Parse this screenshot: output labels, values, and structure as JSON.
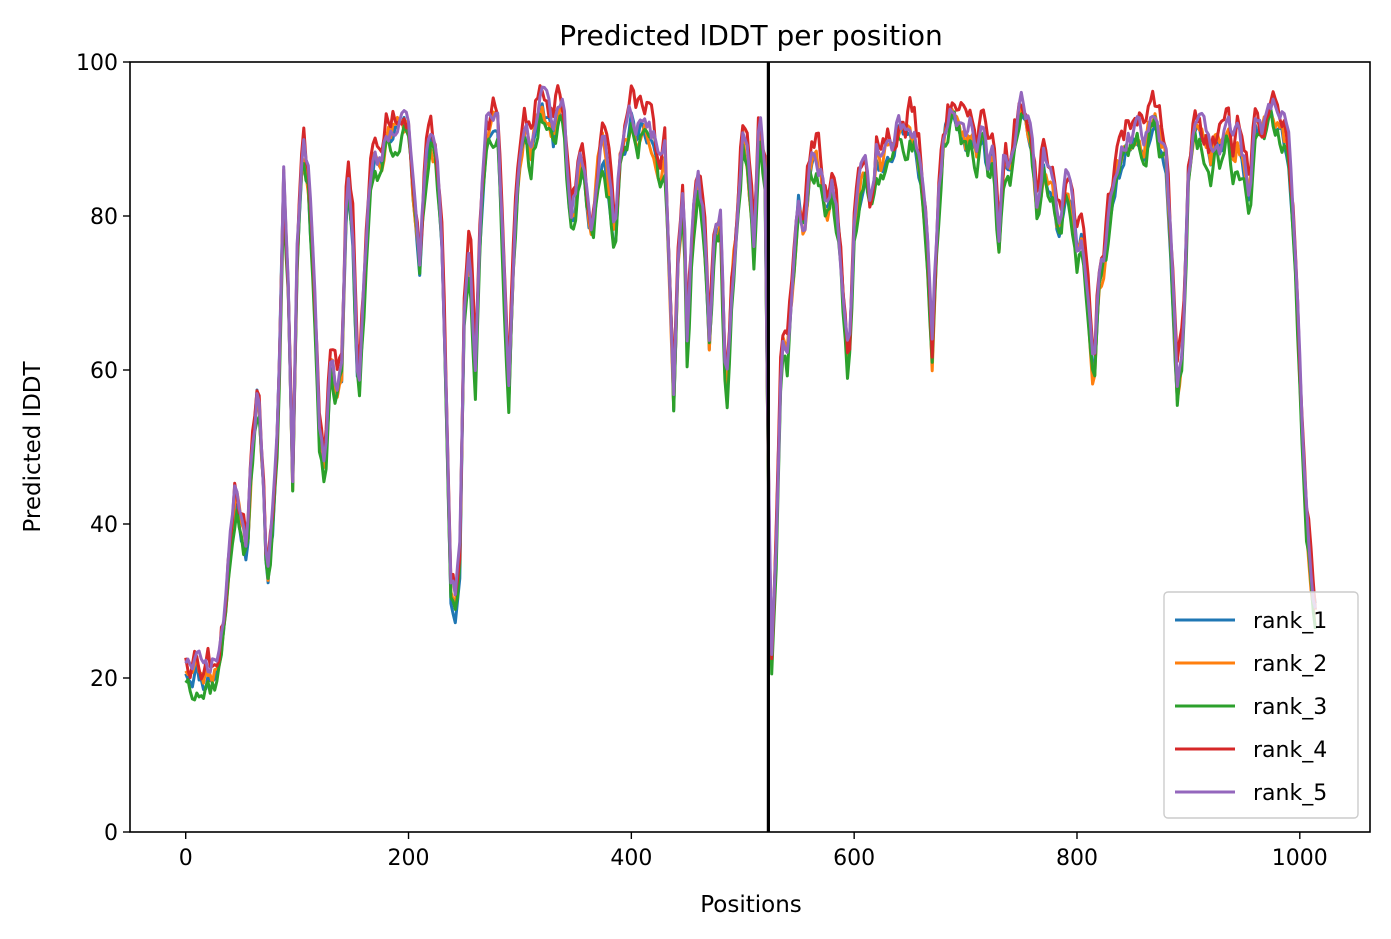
{
  "chart_data": {
    "type": "line",
    "title": "Predicted lDDT per position",
    "xlabel": "Positions",
    "ylabel": "Predicted lDDT",
    "xlim": [
      -50,
      1063
    ],
    "ylim": [
      0,
      100
    ],
    "xticks": [
      0,
      200,
      400,
      600,
      800,
      1000
    ],
    "yticks": [
      0,
      20,
      40,
      60,
      80,
      100
    ],
    "grid": false,
    "legend_position": "lower right",
    "vline_x": 523,
    "colors": {
      "rank_1": "#1f77b4",
      "rank_2": "#ff7f0e",
      "rank_3": "#2ca02c",
      "rank_4": "#d62728",
      "rank_5": "#9467bd",
      "vline": "#000000"
    },
    "base_profile": [
      [
        0,
        22
      ],
      [
        5,
        21
      ],
      [
        10,
        22
      ],
      [
        15,
        20
      ],
      [
        20,
        21
      ],
      [
        25,
        21
      ],
      [
        30,
        23
      ],
      [
        35,
        28
      ],
      [
        40,
        38
      ],
      [
        45,
        44
      ],
      [
        50,
        40
      ],
      [
        55,
        37
      ],
      [
        60,
        50
      ],
      [
        65,
        58
      ],
      [
        70,
        45
      ],
      [
        73,
        33
      ],
      [
        78,
        40
      ],
      [
        83,
        55
      ],
      [
        88,
        85
      ],
      [
        92,
        72
      ],
      [
        96,
        46
      ],
      [
        100,
        75
      ],
      [
        105,
        89
      ],
      [
        110,
        85
      ],
      [
        115,
        72
      ],
      [
        120,
        53
      ],
      [
        125,
        48
      ],
      [
        130,
        62
      ],
      [
        135,
        58
      ],
      [
        140,
        60
      ],
      [
        145,
        86
      ],
      [
        150,
        78
      ],
      [
        155,
        56
      ],
      [
        160,
        70
      ],
      [
        165,
        85
      ],
      [
        170,
        88
      ],
      [
        175,
        86
      ],
      [
        180,
        91
      ],
      [
        190,
        92
      ],
      [
        200,
        92
      ],
      [
        205,
        82
      ],
      [
        210,
        74
      ],
      [
        215,
        86
      ],
      [
        220,
        90
      ],
      [
        225,
        88
      ],
      [
        230,
        76
      ],
      [
        235,
        50
      ],
      [
        238,
        31
      ],
      [
        242,
        30
      ],
      [
        246,
        36
      ],
      [
        250,
        68
      ],
      [
        255,
        76
      ],
      [
        260,
        60
      ],
      [
        265,
        80
      ],
      [
        270,
        90
      ],
      [
        275,
        93
      ],
      [
        280,
        92
      ],
      [
        285,
        75
      ],
      [
        290,
        57
      ],
      [
        295,
        78
      ],
      [
        300,
        88
      ],
      [
        305,
        92
      ],
      [
        310,
        88
      ],
      [
        315,
        93
      ],
      [
        320,
        95
      ],
      [
        325,
        93
      ],
      [
        330,
        90
      ],
      [
        335,
        94
      ],
      [
        340,
        93
      ],
      [
        345,
        80
      ],
      [
        350,
        82
      ],
      [
        355,
        88
      ],
      [
        360,
        83
      ],
      [
        365,
        78
      ],
      [
        370,
        86
      ],
      [
        375,
        90
      ],
      [
        380,
        84
      ],
      [
        385,
        77
      ],
      [
        390,
        88
      ],
      [
        395,
        90
      ],
      [
        400,
        93
      ],
      [
        405,
        90
      ],
      [
        410,
        93
      ],
      [
        415,
        92
      ],
      [
        420,
        90
      ],
      [
        425,
        86
      ],
      [
        430,
        88
      ],
      [
        435,
        70
      ],
      [
        438,
        56
      ],
      [
        442,
        75
      ],
      [
        447,
        84
      ],
      [
        450,
        63
      ],
      [
        455,
        78
      ],
      [
        460,
        85
      ],
      [
        465,
        80
      ],
      [
        470,
        64
      ],
      [
        475,
        78
      ],
      [
        480,
        80
      ],
      [
        485,
        55
      ],
      [
        490,
        70
      ],
      [
        495,
        80
      ],
      [
        500,
        90
      ],
      [
        505,
        86
      ],
      [
        510,
        76
      ],
      [
        515,
        93
      ],
      [
        520,
        85
      ],
      [
        523,
        45
      ],
      [
        526,
        23
      ],
      [
        530,
        38
      ],
      [
        535,
        65
      ],
      [
        540,
        62
      ],
      [
        545,
        72
      ],
      [
        550,
        82
      ],
      [
        555,
        78
      ],
      [
        560,
        86
      ],
      [
        565,
        88
      ],
      [
        570,
        86
      ],
      [
        575,
        80
      ],
      [
        580,
        84
      ],
      [
        585,
        80
      ],
      [
        590,
        70
      ],
      [
        595,
        60
      ],
      [
        600,
        78
      ],
      [
        605,
        84
      ],
      [
        610,
        86
      ],
      [
        615,
        80
      ],
      [
        620,
        88
      ],
      [
        625,
        86
      ],
      [
        630,
        90
      ],
      [
        635,
        89
      ],
      [
        640,
        92
      ],
      [
        645,
        90
      ],
      [
        650,
        92
      ],
      [
        655,
        90
      ],
      [
        660,
        86
      ],
      [
        665,
        78
      ],
      [
        670,
        62
      ],
      [
        675,
        80
      ],
      [
        680,
        90
      ],
      [
        685,
        94
      ],
      [
        690,
        94
      ],
      [
        695,
        92
      ],
      [
        700,
        90
      ],
      [
        705,
        91
      ],
      [
        710,
        88
      ],
      [
        715,
        92
      ],
      [
        720,
        86
      ],
      [
        725,
        88
      ],
      [
        730,
        76
      ],
      [
        735,
        88
      ],
      [
        740,
        86
      ],
      [
        745,
        90
      ],
      [
        750,
        94
      ],
      [
        755,
        92
      ],
      [
        760,
        88
      ],
      [
        765,
        80
      ],
      [
        770,
        87
      ],
      [
        775,
        85
      ],
      [
        780,
        82
      ],
      [
        785,
        78
      ],
      [
        790,
        84
      ],
      [
        795,
        82
      ],
      [
        800,
        76
      ],
      [
        805,
        78
      ],
      [
        810,
        68
      ],
      [
        815,
        58
      ],
      [
        820,
        72
      ],
      [
        825,
        75
      ],
      [
        830,
        82
      ],
      [
        835,
        86
      ],
      [
        840,
        88
      ],
      [
        845,
        90
      ],
      [
        850,
        90
      ],
      [
        855,
        91
      ],
      [
        860,
        88
      ],
      [
        865,
        92
      ],
      [
        870,
        93
      ],
      [
        875,
        90
      ],
      [
        880,
        88
      ],
      [
        885,
        74
      ],
      [
        890,
        58
      ],
      [
        895,
        64
      ],
      [
        900,
        86
      ],
      [
        905,
        92
      ],
      [
        910,
        91
      ],
      [
        915,
        90
      ],
      [
        920,
        88
      ],
      [
        925,
        90
      ],
      [
        930,
        89
      ],
      [
        935,
        92
      ],
      [
        940,
        88
      ],
      [
        945,
        90
      ],
      [
        950,
        86
      ],
      [
        955,
        82
      ],
      [
        960,
        92
      ],
      [
        965,
        90
      ],
      [
        970,
        92
      ],
      [
        975,
        94
      ],
      [
        980,
        93
      ],
      [
        985,
        92
      ],
      [
        990,
        88
      ],
      [
        995,
        78
      ],
      [
        1000,
        60
      ],
      [
        1005,
        42
      ],
      [
        1010,
        34
      ],
      [
        1014,
        29
      ]
    ],
    "series": [
      {
        "name": "rank_1",
        "offset": -0.8,
        "jitter": 1.4,
        "seed": 11
      },
      {
        "name": "rank_2",
        "offset": -0.4,
        "jitter": 1.5,
        "seed": 23
      },
      {
        "name": "rank_3",
        "offset": -1.8,
        "jitter": 1.8,
        "seed": 37
      },
      {
        "name": "rank_4",
        "offset": 1.6,
        "jitter": 2.2,
        "seed": 53
      },
      {
        "name": "rank_5",
        "offset": 0.6,
        "jitter": 1.6,
        "seed": 71
      }
    ]
  }
}
